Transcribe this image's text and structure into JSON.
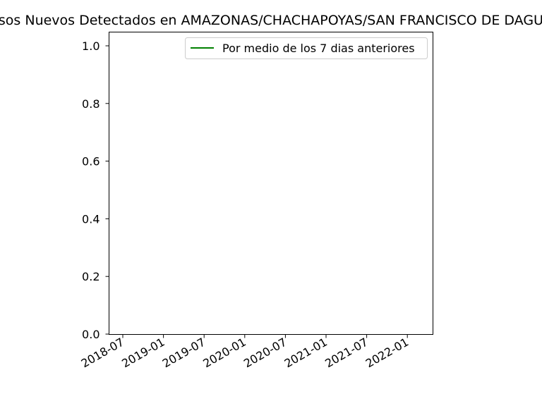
{
  "chart_data": {
    "type": "line",
    "title": "Casos Nuevos Detectados en AMAZONAS/CHACHAPOYAS/SAN FRANCISCO DE DAGUAS",
    "xlabel": "",
    "ylabel": "",
    "x_ticks": [
      "2018-07",
      "2019-01",
      "2019-07",
      "2020-01",
      "2020-07",
      "2021-01",
      "2021-07",
      "2022-01"
    ],
    "y_ticks": [
      "0.0",
      "0.2",
      "0.4",
      "0.6",
      "0.8",
      "1.0"
    ],
    "ylim": [
      0.0,
      1.0
    ],
    "xlim": [
      "2018-07",
      "2022-01"
    ],
    "grid": false,
    "legend_position": "top-right",
    "series": [
      {
        "name": "Por medio de los 7 dias anteriores",
        "color": "#008000",
        "x": [],
        "y": []
      }
    ]
  }
}
